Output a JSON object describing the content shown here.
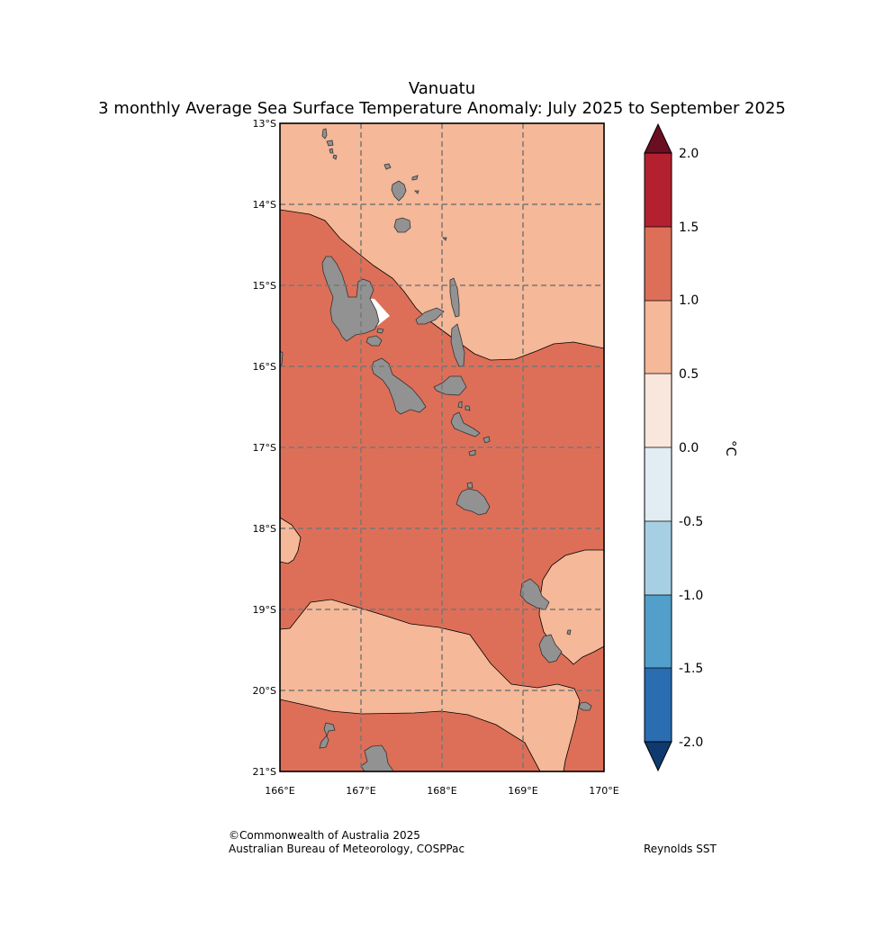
{
  "title": {
    "region": "Vanuatu",
    "subtitle": "3 monthly Average Sea Surface Temperature Anomaly: July 2025 to September 2025"
  },
  "map": {
    "lon_range": [
      166,
      170
    ],
    "lat_range": [
      -21,
      -13
    ],
    "lon_ticks": [
      "166°E",
      "167°E",
      "168°E",
      "169°E",
      "170°E"
    ],
    "lat_ticks": [
      "13°S",
      "14°S",
      "15°S",
      "16°S",
      "17°S",
      "18°S",
      "19°S",
      "20°S",
      "21°S"
    ],
    "gridlines": true,
    "land_color": "#929292",
    "anomaly_field": {
      "background_class": "1.0 to 1.5",
      "warm_regions": [
        {
          "name": "northern-region",
          "class": "0.5 to 1.0"
        },
        {
          "name": "southwest-region",
          "class": "0.5 to 1.0"
        },
        {
          "name": "southern-band",
          "class": "0.5 to 1.0"
        },
        {
          "name": "southeast-region",
          "class": "0.5 to 1.0"
        }
      ],
      "no_data": [
        {
          "name": "no-data-patch-santo"
        }
      ]
    }
  },
  "colorbar": {
    "unit_label": "°C",
    "tick_labels": [
      "2.0",
      "1.5",
      "1.0",
      "0.5",
      "0.0",
      "-0.5",
      "-1.0",
      "-1.5",
      "-2.0"
    ],
    "bins": [
      {
        "range": "1.5 to 2.0",
        "color": "#b32030"
      },
      {
        "range": "1.0 to 1.5",
        "color": "#dd6f58"
      },
      {
        "range": "0.5 to 1.0",
        "color": "#f5b898"
      },
      {
        "range": "0.0 to 0.5",
        "color": "#f9e6dd"
      },
      {
        "range": "-0.5 to 0.0",
        "color": "#e2edf3"
      },
      {
        "range": "-1.0 to -0.5",
        "color": "#a6cfe3"
      },
      {
        "range": "-1.5 to -1.0",
        "color": "#539fcb"
      },
      {
        "range": "-2.0 to -1.5",
        "color": "#2a6db0"
      }
    ],
    "over_color": "#6c0e22",
    "under_color": "#0e3a70"
  },
  "credits": {
    "copyright": "©Commonwealth of Australia 2025",
    "agency": "Australian Bureau of Meteorology, COSPPac",
    "source": "Reynolds SST"
  }
}
